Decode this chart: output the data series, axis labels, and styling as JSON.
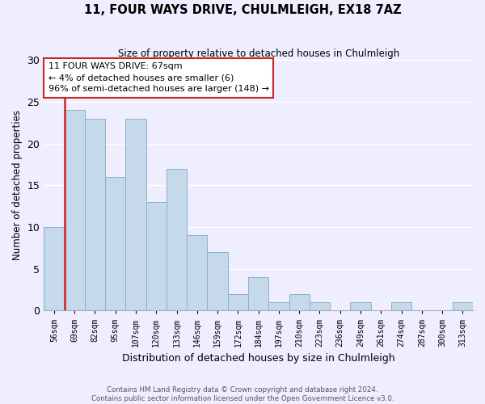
{
  "title": "11, FOUR WAYS DRIVE, CHULMLEIGH, EX18 7AZ",
  "subtitle": "Size of property relative to detached houses in Chulmleigh",
  "xlabel": "Distribution of detached houses by size in Chulmleigh",
  "ylabel": "Number of detached properties",
  "bar_labels": [
    "56sqm",
    "69sqm",
    "82sqm",
    "95sqm",
    "107sqm",
    "120sqm",
    "133sqm",
    "146sqm",
    "159sqm",
    "172sqm",
    "184sqm",
    "197sqm",
    "210sqm",
    "223sqm",
    "236sqm",
    "249sqm",
    "261sqm",
    "274sqm",
    "287sqm",
    "300sqm",
    "313sqm"
  ],
  "bar_heights": [
    10,
    24,
    23,
    16,
    23,
    13,
    17,
    9,
    7,
    2,
    4,
    1,
    2,
    1,
    0,
    1,
    0,
    1,
    0,
    0,
    1
  ],
  "bar_color": "#c5d9ea",
  "bar_edge_color": "#8ab0cc",
  "property_label": "11 FOUR WAYS DRIVE: 67sqm",
  "annotation_smaller": "← 4% of detached houses are smaller (6)",
  "annotation_larger": "96% of semi-detached houses are larger (148) →",
  "box_edge_color": "#cc2222",
  "vline_color": "#cc2222",
  "ylim": [
    0,
    30
  ],
  "yticks": [
    0,
    5,
    10,
    15,
    20,
    25,
    30
  ],
  "footer1": "Contains HM Land Registry data © Crown copyright and database right 2024.",
  "footer2": "Contains public sector information licensed under the Open Government Licence v3.0.",
  "bg_color": "#eeeeff",
  "grid_color": "#ffffff"
}
